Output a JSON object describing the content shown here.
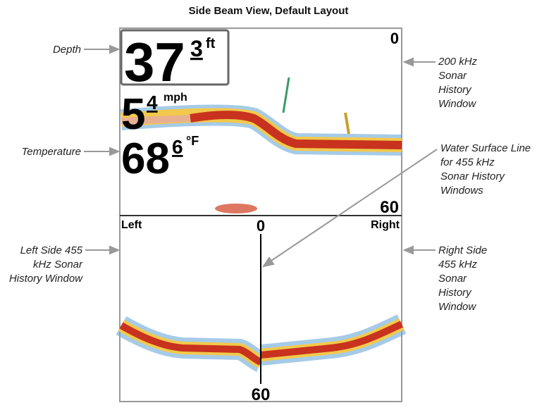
{
  "header": {
    "title": "Side Beam View, Default Layout"
  },
  "screen": {
    "depth": {
      "value": "37",
      "fraction": "3",
      "unit": "ft"
    },
    "speed": {
      "value": "5",
      "fraction": "4",
      "unit": "mph"
    },
    "temperature": {
      "value": "68",
      "fraction": "6",
      "unit": "°F"
    },
    "top_window": {
      "scale_top": "0",
      "scale_bottom": "60"
    },
    "side_window": {
      "left": "Left",
      "right": "Right",
      "scale_top": "0",
      "scale_bottom": "60"
    }
  },
  "annotations": {
    "depth": [
      "Depth"
    ],
    "temperature": [
      "Temperature"
    ],
    "left_side": [
      "Left Side 455",
      "kHz Sonar",
      "History Window"
    ],
    "khz200": [
      "200 kHz",
      "Sonar",
      "History",
      "Window"
    ],
    "water_surface": [
      "Water Surface Line",
      "for 455 kHz",
      "Sonar History",
      "Windows"
    ],
    "right_side": [
      "Right Side",
      "455 kHz",
      "Sonar",
      "History",
      "Window"
    ]
  }
}
